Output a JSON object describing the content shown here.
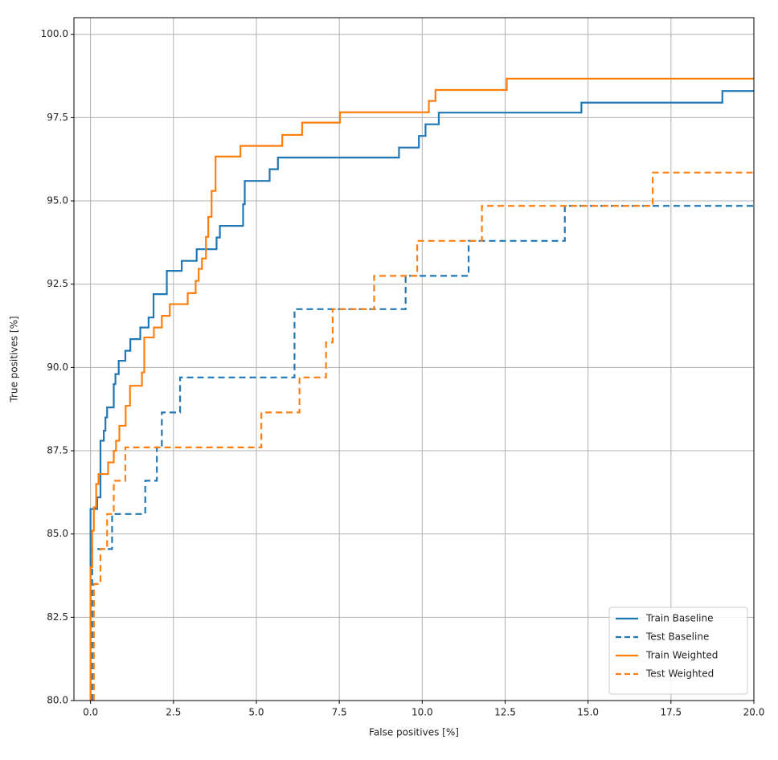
{
  "chart_data": {
    "type": "line",
    "xlabel": "False positives [%]",
    "ylabel": "True positives [%]",
    "xlim": [
      -0.5,
      20
    ],
    "ylim": [
      80,
      100.5
    ],
    "xticks": [
      {
        "value": 0,
        "label": "0.0"
      },
      2.5,
      {
        "value": 5,
        "label": "5.0"
      },
      7.5,
      {
        "value": 10,
        "label": "10.0"
      },
      12.5,
      {
        "value": 15,
        "label": "15.0"
      },
      17.5,
      {
        "value": 20,
        "label": "20.0"
      }
    ],
    "yticks": [
      {
        "value": 80,
        "label": "80.0"
      },
      82.5,
      {
        "value": 85,
        "label": "85.0"
      },
      87.5,
      {
        "value": 90,
        "label": "90.0"
      },
      92.5,
      {
        "value": 95,
        "label": "95.0"
      },
      97.5,
      {
        "value": 100,
        "label": "100.0"
      }
    ],
    "grid": true,
    "legend": "lower right",
    "series": [
      {
        "name": "Train Baseline",
        "color": "#1f77b4",
        "linestyle": "solid",
        "x": [
          0,
          0,
          0.2,
          0.2,
          0.3,
          0.3,
          0.4,
          0.4,
          0.45,
          0.45,
          0.5,
          0.5,
          0.7,
          0.7,
          0.75,
          0.75,
          0.85,
          0.85,
          1.05,
          1.05,
          1.2,
          1.2,
          1.5,
          1.5,
          1.75,
          1.75,
          1.9,
          1.9,
          2.3,
          2.3,
          2.75,
          2.75,
          3.2,
          3.2,
          3.8,
          3.8,
          3.9,
          3.9,
          4.6,
          4.6,
          4.65,
          4.65,
          5.4,
          5.4,
          5.65,
          5.65,
          9.3,
          9.3,
          9.9,
          9.9,
          10.1,
          10.1,
          10.5,
          10.5,
          14.8,
          14.8,
          19.05,
          19.05,
          20
        ],
        "values": [
          80,
          85.75,
          85.75,
          86.1,
          86.1,
          87.8,
          87.8,
          88.1,
          88.1,
          88.5,
          88.5,
          88.8,
          88.8,
          89.5,
          89.5,
          89.8,
          89.8,
          90.2,
          90.2,
          90.5,
          90.5,
          90.85,
          90.85,
          91.2,
          91.2,
          91.5,
          91.5,
          92.2,
          92.2,
          92.9,
          92.9,
          93.2,
          93.2,
          93.55,
          93.55,
          93.9,
          93.9,
          94.25,
          94.25,
          94.9,
          94.9,
          95.6,
          95.6,
          95.95,
          95.95,
          96.3,
          96.3,
          96.6,
          96.6,
          96.95,
          96.95,
          97.3,
          97.3,
          97.65,
          97.65,
          97.95,
          97.95,
          98.3,
          98.3
        ]
      },
      {
        "name": "Test Baseline",
        "color": "#1f77b4",
        "linestyle": "dashed",
        "x": [
          0.05,
          0.05,
          0.65,
          0.65,
          1.65,
          1.65,
          2.0,
          2.0,
          2.15,
          2.15,
          2.7,
          2.7,
          6.15,
          6.15,
          9.5,
          9.5,
          11.4,
          11.4,
          14.3,
          14.3,
          20
        ],
        "values": [
          80,
          84.55,
          84.55,
          85.6,
          85.6,
          86.6,
          86.6,
          87.6,
          87.6,
          88.65,
          88.65,
          89.7,
          89.7,
          91.75,
          91.75,
          92.75,
          92.75,
          93.8,
          93.8,
          94.85,
          94.85
        ]
      },
      {
        "name": "Train Weighted",
        "color": "#ff7f0e",
        "linestyle": "solid",
        "x": [
          0,
          0,
          0.05,
          0.05,
          0.1,
          0.1,
          0.17,
          0.17,
          0.24,
          0.24,
          0.53,
          0.53,
          0.7,
          0.7,
          0.77,
          0.77,
          0.87,
          0.87,
          1.06,
          1.06,
          1.19,
          1.19,
          1.55,
          1.55,
          1.62,
          1.62,
          1.91,
          1.91,
          2.15,
          2.15,
          2.39,
          2.39,
          2.93,
          2.93,
          3.17,
          3.17,
          3.26,
          3.26,
          3.36,
          3.36,
          3.48,
          3.48,
          3.55,
          3.55,
          3.65,
          3.65,
          3.77,
          3.77,
          4.52,
          4.52,
          5.78,
          5.78,
          6.38,
          6.38,
          7.52,
          7.52,
          10.2,
          10.2,
          10.4,
          10.4,
          12.55,
          12.55,
          20
        ],
        "values": [
          80,
          84.0,
          84.0,
          85.1,
          85.1,
          85.8,
          85.8,
          86.5,
          86.5,
          86.8,
          86.8,
          87.15,
          87.15,
          87.5,
          87.5,
          87.8,
          87.8,
          88.25,
          88.25,
          88.85,
          88.85,
          89.45,
          89.45,
          89.85,
          89.85,
          90.9,
          90.9,
          91.2,
          91.2,
          91.55,
          91.55,
          91.9,
          91.9,
          92.23,
          92.23,
          92.6,
          92.6,
          92.96,
          92.96,
          93.27,
          93.27,
          93.92,
          93.92,
          94.52,
          94.52,
          95.3,
          95.3,
          96.33,
          96.33,
          96.65,
          96.65,
          96.98,
          96.98,
          97.35,
          97.35,
          97.66,
          97.66,
          98.0,
          98.0,
          98.33,
          98.33,
          98.67,
          98.67
        ]
      },
      {
        "name": "Test Weighted",
        "color": "#ff7f0e",
        "linestyle": "dashed",
        "x": [
          0.1,
          0.1,
          0.3,
          0.3,
          0.5,
          0.5,
          0.7,
          0.7,
          1.05,
          1.05,
          5.15,
          5.15,
          6.3,
          6.3,
          7.1,
          7.1,
          7.3,
          7.3,
          8.55,
          8.55,
          9.85,
          9.85,
          11.8,
          11.8,
          16.95,
          16.95,
          20
        ],
        "values": [
          80,
          83.5,
          83.5,
          84.55,
          84.55,
          85.6,
          85.6,
          86.6,
          86.6,
          87.6,
          87.6,
          88.65,
          88.65,
          89.7,
          89.7,
          90.75,
          90.75,
          91.75,
          91.75,
          92.75,
          92.75,
          93.8,
          93.8,
          94.85,
          94.85,
          95.85,
          95.85
        ]
      }
    ]
  }
}
